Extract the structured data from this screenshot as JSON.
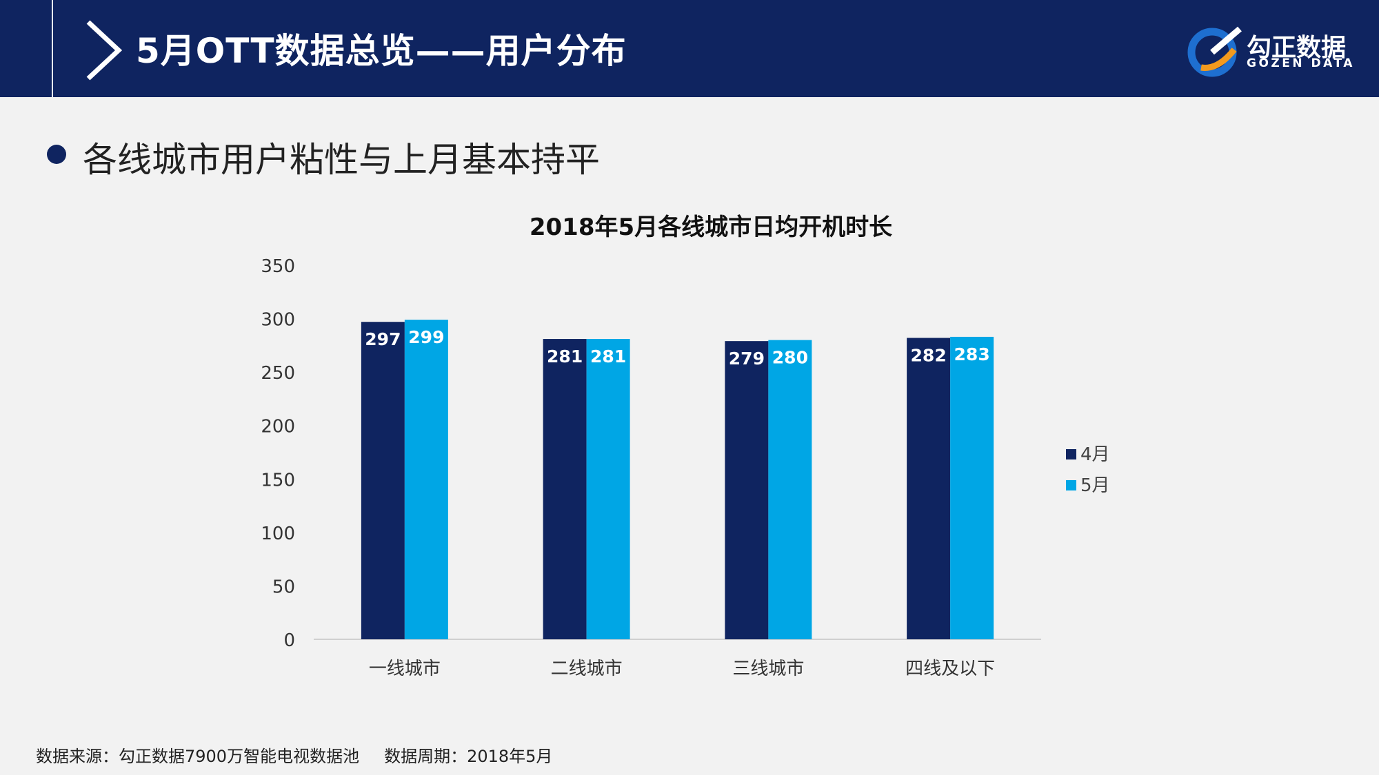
{
  "header": {
    "title": "5月OTT数据总览——用户分布",
    "logo_cn": "勾正数据",
    "logo_en": "GOZEN DATA"
  },
  "bullet": {
    "text": "各线城市用户粘性与上月基本持平"
  },
  "colors": {
    "header_bg": "#0f2460",
    "series_april": "#0f2460",
    "series_may": "#00a6e5",
    "background": "#f2f2f2"
  },
  "chart_data": {
    "type": "bar",
    "title": "2018年5月各线城市日均开机时长",
    "categories": [
      "一线城市",
      "二线城市",
      "三线城市",
      "四线及以下"
    ],
    "series": [
      {
        "name": "4月",
        "color": "#0f2460",
        "values": [
          297,
          281,
          279,
          282
        ]
      },
      {
        "name": "5月",
        "color": "#00a6e5",
        "values": [
          299,
          281,
          280,
          283
        ]
      }
    ],
    "ylim": [
      0,
      350
    ],
    "yticks": [
      0,
      50,
      100,
      150,
      200,
      250,
      300,
      350
    ],
    "xlabel": "",
    "ylabel": "",
    "grid": false,
    "legend_position": "right",
    "data_labels": true
  },
  "footer": {
    "source": "数据来源：勾正数据7900万智能电视数据池",
    "period": "数据周期：2018年5月"
  }
}
